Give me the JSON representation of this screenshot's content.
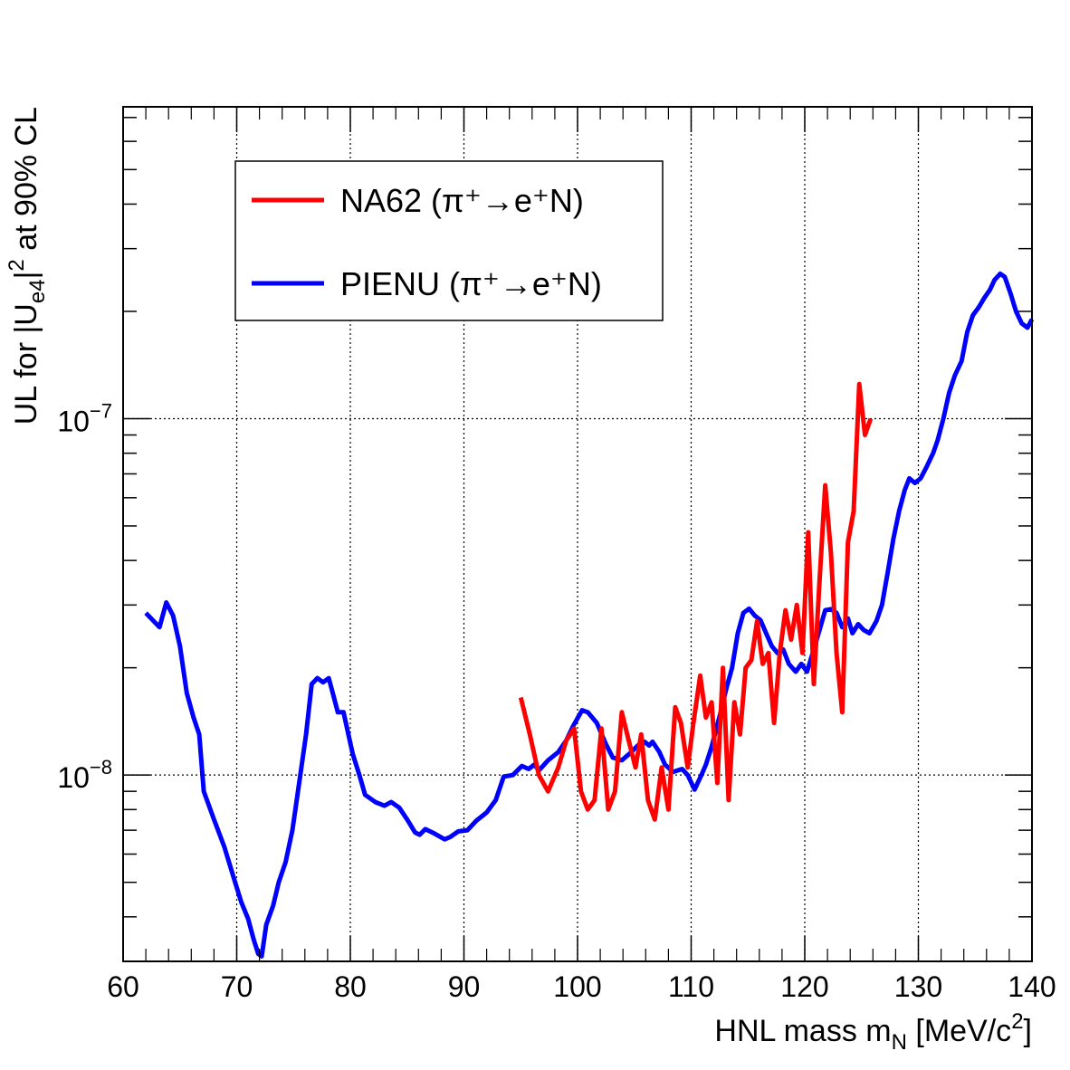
{
  "chart_data": {
    "type": "line",
    "title": "",
    "xlabel": "HNL mass m",
    "xlabel_sub": "N",
    "xlabel_unit_prefix": " [MeV/c",
    "xlabel_unit_sup": "2",
    "xlabel_unit_suffix": "]",
    "ylabel_parts": {
      "prefix": "UL for |U",
      "sub": "e4",
      "mid": "|",
      "sup": "2",
      "suffix": " at 90% CL"
    },
    "xlim": [
      60,
      140
    ],
    "ylim": [
      3e-09,
      7.5e-07
    ],
    "yscale": "log",
    "grid": true,
    "x_ticks": [
      60,
      70,
      80,
      90,
      100,
      110,
      120,
      130,
      140
    ],
    "x_tick_labels": [
      "60",
      "70",
      "80",
      "90",
      "100",
      "110",
      "120",
      "130",
      "140"
    ],
    "y_major_labels": [
      {
        "value": 1e-08,
        "base": "10",
        "exp": "−8"
      },
      {
        "value": 1e-07,
        "base": "10",
        "exp": "−7"
      }
    ],
    "legend": {
      "position": "top-left",
      "entries": [
        {
          "name": "NA62 (π⁺→e⁺N)",
          "color": "#ff0000"
        },
        {
          "name": "PIENU (π⁺→e⁺N)",
          "color": "#0000ff"
        }
      ]
    },
    "series": [
      {
        "name": "PIENU (π⁺→e⁺N)",
        "color": "#0000ff",
        "points": [
          [
            62.0,
            2.85e-08
          ],
          [
            63.2,
            2.6e-08
          ],
          [
            63.8,
            3.05e-08
          ],
          [
            64.4,
            2.8e-08
          ],
          [
            65.0,
            2.3e-08
          ],
          [
            65.6,
            1.7e-08
          ],
          [
            66.2,
            1.45e-08
          ],
          [
            66.7,
            1.3e-08
          ],
          [
            67.1,
            9e-09
          ],
          [
            68.0,
            7.5e-09
          ],
          [
            68.9,
            6.3e-09
          ],
          [
            69.7,
            5.2e-09
          ],
          [
            70.4,
            4.4e-09
          ],
          [
            71.0,
            3.95e-09
          ],
          [
            71.5,
            3.45e-09
          ],
          [
            71.9,
            3.15e-09
          ],
          [
            72.2,
            3.1e-09
          ],
          [
            72.6,
            3.8e-09
          ],
          [
            73.2,
            4.3e-09
          ],
          [
            73.7,
            5e-09
          ],
          [
            74.3,
            5.7e-09
          ],
          [
            74.9,
            7e-09
          ],
          [
            75.5,
            9.5e-09
          ],
          [
            76.1,
            1.3e-08
          ],
          [
            76.6,
            1.8e-08
          ],
          [
            77.1,
            1.87e-08
          ],
          [
            77.6,
            1.82e-08
          ],
          [
            78.1,
            1.87e-08
          ],
          [
            78.9,
            1.5e-08
          ],
          [
            79.4,
            1.5e-08
          ],
          [
            80.2,
            1.15e-08
          ],
          [
            80.8,
            1e-08
          ],
          [
            81.3,
            8.8e-09
          ],
          [
            82.2,
            8.4e-09
          ],
          [
            83.0,
            8.2e-09
          ],
          [
            83.6,
            8.4e-09
          ],
          [
            84.3,
            8.1e-09
          ],
          [
            85.0,
            7.5e-09
          ],
          [
            85.7,
            6.9e-09
          ],
          [
            86.1,
            6.8e-09
          ],
          [
            86.6,
            7.05e-09
          ],
          [
            87.4,
            6.85e-09
          ],
          [
            88.3,
            6.6e-09
          ],
          [
            88.8,
            6.7e-09
          ],
          [
            89.5,
            6.95e-09
          ],
          [
            90.3,
            7e-09
          ],
          [
            91.1,
            7.45e-09
          ],
          [
            92.0,
            7.85e-09
          ],
          [
            92.8,
            8.5e-09
          ],
          [
            93.5,
            9.9e-09
          ],
          [
            94.3,
            1e-08
          ],
          [
            95.1,
            1.06e-08
          ],
          [
            95.7,
            1.04e-08
          ],
          [
            96.2,
            1.07e-08
          ],
          [
            96.6,
            1.03e-08
          ],
          [
            97.4,
            1.1e-08
          ],
          [
            98.3,
            1.16e-08
          ],
          [
            99.0,
            1.25e-08
          ],
          [
            99.6,
            1.37e-08
          ],
          [
            100.4,
            1.52e-08
          ],
          [
            100.9,
            1.5e-08
          ],
          [
            101.7,
            1.4e-08
          ],
          [
            102.5,
            1.22e-08
          ],
          [
            103.1,
            1.12e-08
          ],
          [
            103.9,
            1.1e-08
          ],
          [
            104.6,
            1.15e-08
          ],
          [
            105.3,
            1.21e-08
          ],
          [
            105.9,
            1.24e-08
          ],
          [
            106.3,
            1.21e-08
          ],
          [
            106.6,
            1.24e-08
          ],
          [
            107.2,
            1.16e-08
          ],
          [
            107.7,
            1.07e-08
          ],
          [
            108.4,
            1.02e-08
          ],
          [
            109.2,
            1.04e-08
          ],
          [
            109.7,
            1e-08
          ],
          [
            110.3,
            9.1e-09
          ],
          [
            110.9,
            1e-08
          ],
          [
            111.3,
            1.07e-08
          ],
          [
            111.8,
            1.2e-08
          ],
          [
            112.6,
            1.5e-08
          ],
          [
            113.1,
            1.75e-08
          ],
          [
            113.6,
            2e-08
          ],
          [
            114.1,
            2.5e-08
          ],
          [
            114.6,
            2.85e-08
          ],
          [
            115.1,
            2.93e-08
          ],
          [
            115.6,
            2.8e-08
          ],
          [
            116.1,
            2.72e-08
          ],
          [
            116.6,
            2.5e-08
          ],
          [
            117.1,
            2.3e-08
          ],
          [
            117.6,
            2.2e-08
          ],
          [
            118.1,
            2.25e-08
          ],
          [
            118.6,
            2.05e-08
          ],
          [
            119.2,
            1.95e-08
          ],
          [
            119.7,
            2.05e-08
          ],
          [
            120.2,
            1.95e-08
          ],
          [
            120.7,
            2.2e-08
          ],
          [
            121.3,
            2.55e-08
          ],
          [
            121.8,
            2.9e-08
          ],
          [
            122.3,
            2.92e-08
          ],
          [
            122.8,
            2.85e-08
          ],
          [
            123.3,
            2.6e-08
          ],
          [
            123.8,
            2.75e-08
          ],
          [
            124.2,
            2.5e-08
          ],
          [
            124.7,
            2.65e-08
          ],
          [
            125.2,
            2.55e-08
          ],
          [
            125.7,
            2.5e-08
          ],
          [
            126.3,
            2.7e-08
          ],
          [
            126.8,
            3e-08
          ],
          [
            127.3,
            3.7e-08
          ],
          [
            127.8,
            4.6e-08
          ],
          [
            128.3,
            5.5e-08
          ],
          [
            128.8,
            6.3e-08
          ],
          [
            129.2,
            6.8e-08
          ],
          [
            129.7,
            6.6e-08
          ],
          [
            130.2,
            6.8e-08
          ],
          [
            130.7,
            7.3e-08
          ],
          [
            131.3,
            8e-08
          ],
          [
            131.7,
            8.7e-08
          ],
          [
            132.2,
            1e-07
          ],
          [
            132.7,
            1.18e-07
          ],
          [
            133.2,
            1.32e-07
          ],
          [
            133.8,
            1.45e-07
          ],
          [
            134.3,
            1.75e-07
          ],
          [
            134.8,
            1.95e-07
          ],
          [
            135.3,
            2.05e-07
          ],
          [
            135.8,
            2.18e-07
          ],
          [
            136.3,
            2.3e-07
          ],
          [
            136.7,
            2.45e-07
          ],
          [
            137.2,
            2.55e-07
          ],
          [
            137.6,
            2.5e-07
          ],
          [
            138.1,
            2.25e-07
          ],
          [
            138.6,
            2e-07
          ],
          [
            139.1,
            1.85e-07
          ],
          [
            139.6,
            1.8e-07
          ],
          [
            140.0,
            1.9e-07
          ]
        ]
      },
      {
        "name": "NA62 (π⁺→e⁺N)",
        "color": "#ff0000",
        "points": [
          [
            95.0,
            1.65e-08
          ],
          [
            95.8,
            1.3e-08
          ],
          [
            96.6,
            1e-08
          ],
          [
            97.4,
            9e-09
          ],
          [
            98.3,
            1.05e-08
          ],
          [
            99.0,
            1.25e-08
          ],
          [
            99.7,
            1.35e-08
          ],
          [
            100.3,
            9e-09
          ],
          [
            100.9,
            8e-09
          ],
          [
            101.5,
            8.5e-09
          ],
          [
            102.1,
            1.35e-08
          ],
          [
            102.7,
            8e-09
          ],
          [
            103.3,
            9e-09
          ],
          [
            103.9,
            1.5e-08
          ],
          [
            104.5,
            1.25e-08
          ],
          [
            105.1,
            1.05e-08
          ],
          [
            105.6,
            1.3e-08
          ],
          [
            106.2,
            8.5e-09
          ],
          [
            106.8,
            7.5e-09
          ],
          [
            107.4,
            1.05e-08
          ],
          [
            108.0,
            8e-09
          ],
          [
            108.6,
            1.55e-08
          ],
          [
            109.1,
            1.4e-08
          ],
          [
            109.7,
            1.05e-08
          ],
          [
            110.2,
            1.4e-08
          ],
          [
            110.8,
            1.9e-08
          ],
          [
            111.3,
            1.45e-08
          ],
          [
            111.8,
            1.6e-08
          ],
          [
            112.3,
            9.5e-09
          ],
          [
            112.8,
            2e-08
          ],
          [
            113.3,
            8.5e-09
          ],
          [
            113.8,
            1.6e-08
          ],
          [
            114.3,
            1.3e-08
          ],
          [
            114.8,
            2e-08
          ],
          [
            115.3,
            2.1e-08
          ],
          [
            115.8,
            2.7e-08
          ],
          [
            116.3,
            2.05e-08
          ],
          [
            116.8,
            2.2e-08
          ],
          [
            117.3,
            1.4e-08
          ],
          [
            117.8,
            2.2e-08
          ],
          [
            118.3,
            2.9e-08
          ],
          [
            118.8,
            2.4e-08
          ],
          [
            119.3,
            3e-08
          ],
          [
            119.8,
            2.2e-08
          ],
          [
            120.3,
            4.8e-08
          ],
          [
            120.8,
            1.8e-08
          ],
          [
            121.3,
            3.5e-08
          ],
          [
            121.8,
            6.5e-08
          ],
          [
            122.3,
            4.2e-08
          ],
          [
            122.8,
            2.2e-08
          ],
          [
            123.3,
            1.5e-08
          ],
          [
            123.8,
            4.5e-08
          ],
          [
            124.3,
            5.5e-08
          ],
          [
            124.8,
            1.25e-07
          ],
          [
            125.3,
            9e-08
          ],
          [
            125.8,
            1e-07
          ]
        ]
      }
    ]
  }
}
